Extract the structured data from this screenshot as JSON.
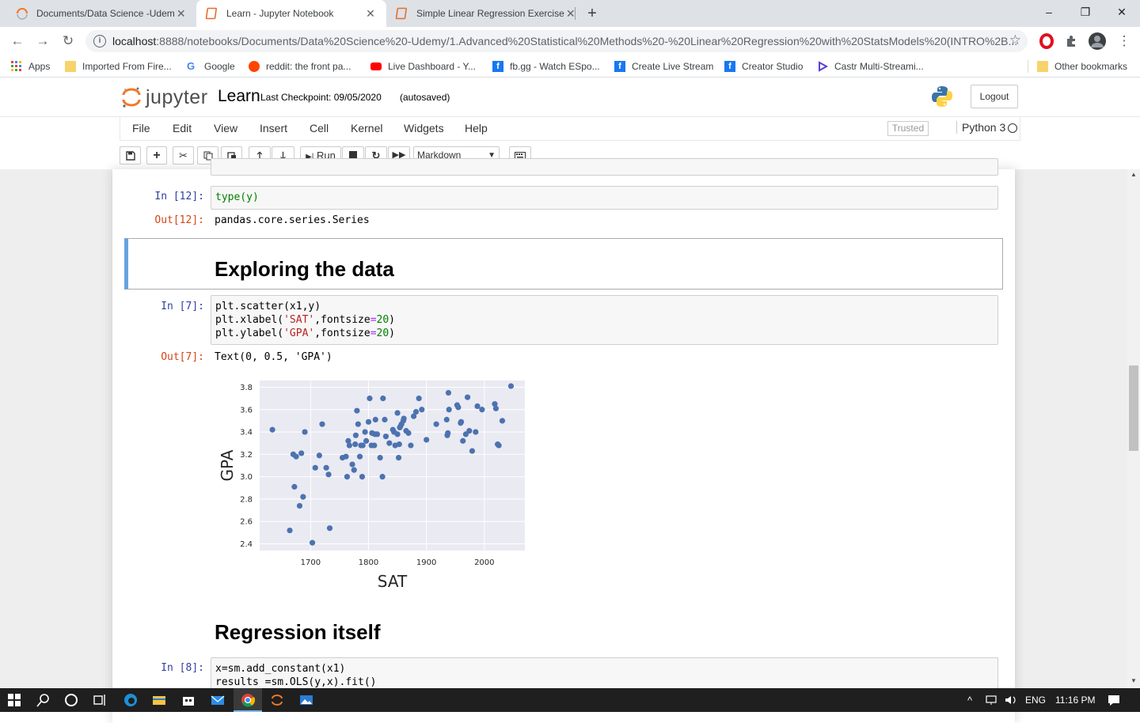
{
  "browser": {
    "tabs": [
      {
        "title": "Documents/Data Science -Udem",
        "icon": "jupyter-spinner-icon",
        "active": false
      },
      {
        "title": "Learn - Jupyter Notebook",
        "icon": "notebook-icon",
        "active": true
      },
      {
        "title": "Simple Linear Regression Exercise",
        "icon": "notebook-icon",
        "active": false
      }
    ],
    "new_tab": "+",
    "window_controls": {
      "minimize": "–",
      "restore": "❐",
      "close": "✕"
    },
    "url_host": "localhost",
    "url_rest": ":8888/notebooks/Documents/Data%20Science%20-Udemy/1.Advanced%20Statistical%20Methods%20-%20Linear%20Regression%20with%20StatsModels%20(INTRO%2B...",
    "bookmarks": [
      {
        "label": "Apps",
        "icon": "apps-grid-icon"
      },
      {
        "label": "Imported From Fire...",
        "icon": "folder-icon"
      },
      {
        "label": "Google",
        "icon": "google-icon"
      },
      {
        "label": "reddit: the front pa...",
        "icon": "reddit-icon"
      },
      {
        "label": "Live Dashboard - Y...",
        "icon": "youtube-icon"
      },
      {
        "label": "fb.gg - Watch ESpo...",
        "icon": "facebook-icon"
      },
      {
        "label": "Create Live Stream",
        "icon": "facebook-icon"
      },
      {
        "label": "Creator Studio",
        "icon": "facebook-icon"
      },
      {
        "label": "Castr Multi-Streami...",
        "icon": "castr-icon"
      }
    ],
    "other_bookmarks": "Other bookmarks"
  },
  "jupyter": {
    "logo_text": "jupyter",
    "notebook_name": "Learn",
    "checkpoint": "Last Checkpoint: 09/05/2020",
    "autosave": "(autosaved)",
    "logout": "Logout",
    "menu": [
      "File",
      "Edit",
      "View",
      "Insert",
      "Cell",
      "Kernel",
      "Widgets",
      "Help"
    ],
    "trusted": "Trusted",
    "kernel": "Python 3",
    "run_label": "Run",
    "cell_type": "Markdown"
  },
  "cells": {
    "c12_prompt": "In [12]:",
    "c12_code": "type(y)",
    "c12_out_prompt": "Out[12]:",
    "c12_output": "pandas.core.series.Series",
    "md1": "Exploring the data",
    "c7_prompt": "In [7]:",
    "c7_line1": "plt.scatter(x1,y)",
    "c7_line2_a": "plt.xlabel(",
    "c7_line2_str": "'SAT'",
    "c7_line2_b": ",fontsize",
    "c7_line2_eq": "=",
    "c7_line2_num": "20",
    "c7_line2_c": ")",
    "c7_line3_a": "plt.ylabel(",
    "c7_line3_str": "'GPA'",
    "c7_line3_b": ",fontsize",
    "c7_line3_eq": "=",
    "c7_line3_num": "20",
    "c7_line3_c": ")",
    "c7_out_prompt": "Out[7]:",
    "c7_output": "Text(0, 0.5, 'GPA')",
    "md2": "Regression itself",
    "c8_prompt": "In [8]:",
    "c8_line1": "x=sm.add_constant(x1)",
    "c8_line2": "results =sm.OLS(y,x).fit()"
  },
  "taskbar": {
    "lang": "ENG",
    "time": "11:16 PM"
  },
  "chart_data": {
    "type": "scatter",
    "xlabel": "SAT",
    "ylabel": "GPA",
    "xlim": [
      1612,
      2070
    ],
    "ylim": [
      2.34,
      3.86
    ],
    "xticks": [
      1700,
      1800,
      1900,
      2000
    ],
    "yticks": [
      2.4,
      2.6,
      2.8,
      3.0,
      3.2,
      3.4,
      3.6,
      3.8
    ],
    "grid": true,
    "color": "#4c72b0",
    "background": "#eaeaf2",
    "x": [
      1634,
      1664,
      1670,
      1672,
      1675,
      1681,
      1684,
      1687,
      1690,
      1703,
      1708,
      1715,
      1720,
      1727,
      1731,
      1733,
      1755,
      1761,
      1763,
      1765,
      1767,
      1772,
      1775,
      1777,
      1778,
      1780,
      1782,
      1785,
      1787,
      1789,
      1790,
      1794,
      1796,
      1800,
      1802,
      1805,
      1806,
      1810,
      1811,
      1812,
      1815,
      1820,
      1824,
      1825,
      1828,
      1830,
      1836,
      1842,
      1844,
      1846,
      1850,
      1850,
      1852,
      1853,
      1854,
      1855,
      1857,
      1860,
      1861,
      1865,
      1869,
      1873,
      1878,
      1882,
      1887,
      1892,
      1900,
      1917,
      1935,
      1936,
      1937,
      1938,
      1939,
      1953,
      1955,
      1959,
      1960,
      1963,
      1968,
      1971,
      1974,
      1979,
      1985,
      1988,
      1996,
      2018,
      2020,
      2023,
      2025,
      2031,
      2046
    ],
    "y": [
      3.42,
      2.52,
      3.2,
      2.91,
      3.18,
      2.74,
      3.21,
      2.82,
      3.4,
      2.41,
      3.08,
      3.19,
      3.47,
      3.08,
      3.02,
      2.54,
      3.17,
      3.18,
      3.0,
      3.32,
      3.28,
      3.11,
      3.06,
      3.29,
      3.37,
      3.59,
      3.47,
      3.18,
      3.28,
      3.0,
      3.28,
      3.4,
      3.32,
      3.49,
      3.7,
      3.28,
      3.39,
      3.28,
      3.38,
      3.51,
      3.38,
      3.17,
      3.0,
      3.7,
      3.51,
      3.36,
      3.3,
      3.42,
      3.4,
      3.28,
      3.57,
      3.38,
      3.17,
      3.29,
      3.44,
      3.45,
      3.47,
      3.5,
      3.52,
      3.41,
      3.39,
      3.28,
      3.54,
      3.58,
      3.7,
      3.6,
      3.33,
      3.47,
      3.51,
      3.37,
      3.39,
      3.75,
      3.6,
      3.64,
      3.62,
      3.48,
      3.49,
      3.32,
      3.38,
      3.71,
      3.41,
      3.23,
      3.4,
      3.63,
      3.6,
      3.65,
      3.61,
      3.29,
      3.28,
      3.5,
      3.81
    ]
  }
}
